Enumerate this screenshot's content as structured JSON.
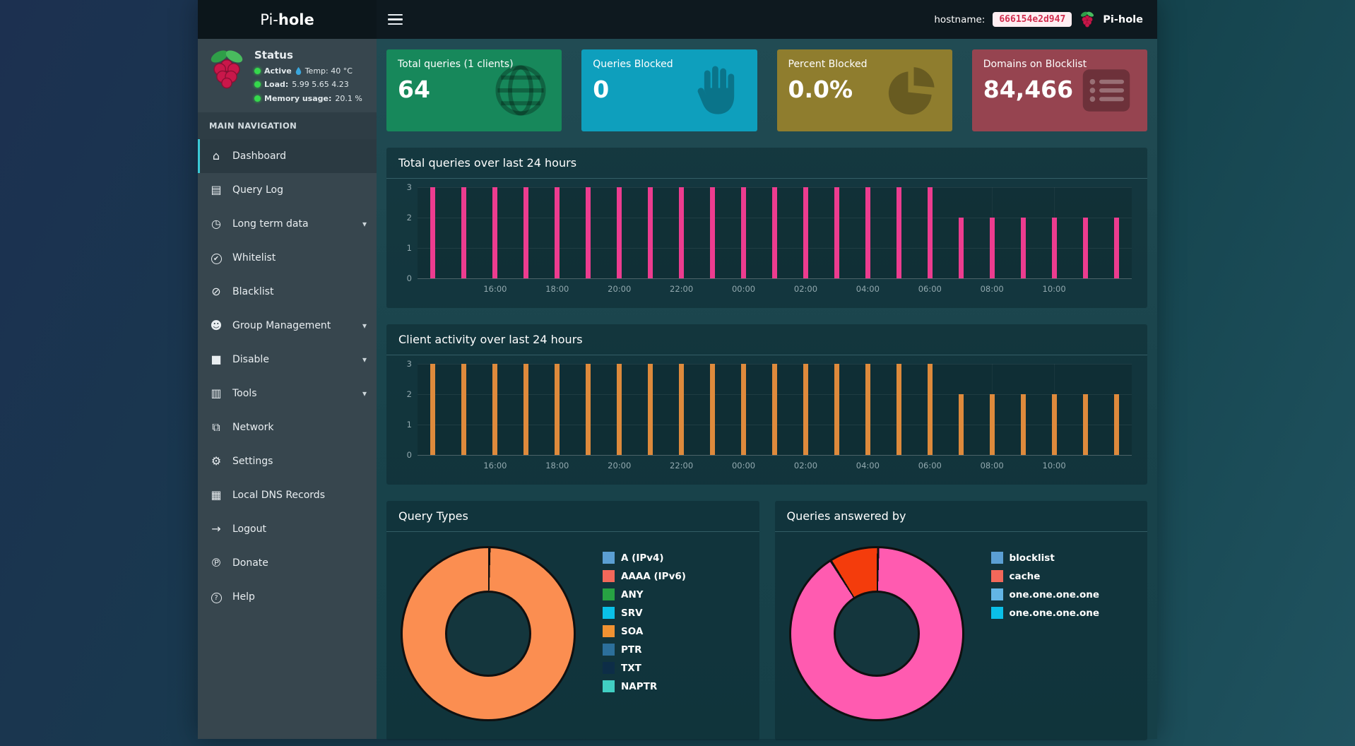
{
  "topbar": {
    "brand_pre": "Pi-",
    "brand_bold": "hole",
    "hostname_label": "hostname:",
    "hostname_value": "666154e2d947",
    "brand_right": "Pi-hole"
  },
  "sidebar": {
    "status": {
      "title": "Status",
      "rows": [
        {
          "label": "Active",
          "temp": "Temp: 40 °C"
        },
        {
          "label": "Load:",
          "value": "5.99  5.65  4.23"
        },
        {
          "label": "Memory usage:",
          "value": "20.1 %"
        }
      ]
    },
    "nav_header": "MAIN NAVIGATION",
    "items": [
      {
        "id": "dashboard",
        "label": "Dashboard",
        "icon": "home-icon",
        "glyph": "⌂",
        "active": true
      },
      {
        "id": "query-log",
        "label": "Query Log",
        "icon": "file-list-icon",
        "glyph": "▤"
      },
      {
        "id": "long-term-data",
        "label": "Long term data",
        "icon": "clock-icon",
        "glyph": "◷",
        "chevron": true
      },
      {
        "id": "whitelist",
        "label": "Whitelist",
        "icon": "check-circle-icon",
        "glyph": "✔",
        "circled": true
      },
      {
        "id": "blacklist",
        "label": "Blacklist",
        "icon": "ban-icon",
        "glyph": "⊘"
      },
      {
        "id": "group-management",
        "label": "Group Management",
        "icon": "users-icon",
        "glyph": "☻",
        "chevron": true
      },
      {
        "id": "disable",
        "label": "Disable",
        "icon": "stop-icon",
        "glyph": "■",
        "chevron": true
      },
      {
        "id": "tools",
        "label": "Tools",
        "icon": "folder-icon",
        "glyph": "▥",
        "chevron": true
      },
      {
        "id": "network",
        "label": "Network",
        "icon": "network-icon",
        "glyph": "⧉"
      },
      {
        "id": "settings",
        "label": "Settings",
        "icon": "gears-icon",
        "glyph": "⚙"
      },
      {
        "id": "local-dns-records",
        "label": "Local DNS Records",
        "icon": "address-book-icon",
        "glyph": "▦"
      },
      {
        "id": "logout",
        "label": "Logout",
        "icon": "logout-icon",
        "glyph": "→"
      },
      {
        "id": "donate",
        "label": "Donate",
        "icon": "paypal-icon",
        "glyph": "℗"
      },
      {
        "id": "help",
        "label": "Help",
        "icon": "question-circle-icon",
        "glyph": "?",
        "circled": true
      }
    ]
  },
  "cards": [
    {
      "title": "Total queries (1 clients)",
      "value": "64",
      "color": "#17885b",
      "icon": "globe"
    },
    {
      "title": "Queries Blocked",
      "value": "0",
      "color": "#0e9fbd",
      "icon": "hand"
    },
    {
      "title": "Percent Blocked",
      "value": "0.0%",
      "color": "#8f7d2e",
      "icon": "pie"
    },
    {
      "title": "Domains on Blocklist",
      "value": "84,466",
      "color": "#964450",
      "icon": "list"
    }
  ],
  "chart_data": [
    {
      "type": "bar",
      "title": "Total queries over last 24 hours",
      "bar_color": "#ed3c8f",
      "ylim": [
        0,
        3
      ],
      "yticks": [
        0,
        1,
        2,
        3
      ],
      "x": [
        "14:00",
        "15:00",
        "16:00",
        "17:00",
        "18:00",
        "19:00",
        "20:00",
        "21:00",
        "22:00",
        "23:00",
        "00:00",
        "01:00",
        "02:00",
        "03:00",
        "04:00",
        "05:00",
        "06:00",
        "07:00",
        "08:00",
        "09:00",
        "10:00",
        "11:00",
        "12:00"
      ],
      "xticks": [
        "16:00",
        "18:00",
        "20:00",
        "22:00",
        "00:00",
        "02:00",
        "04:00",
        "06:00",
        "08:00",
        "10:00"
      ],
      "values": [
        3,
        3,
        3,
        3,
        3,
        3,
        3,
        3,
        3,
        3,
        3,
        3,
        3,
        3,
        3,
        3,
        3,
        2,
        2,
        2,
        2,
        2,
        2
      ]
    },
    {
      "type": "bar",
      "title": "Client activity over last 24 hours",
      "bar_color": "#de8a3c",
      "ylim": [
        0,
        3
      ],
      "yticks": [
        0,
        1,
        2,
        3
      ],
      "x": [
        "14:00",
        "15:00",
        "16:00",
        "17:00",
        "18:00",
        "19:00",
        "20:00",
        "21:00",
        "22:00",
        "23:00",
        "00:00",
        "01:00",
        "02:00",
        "03:00",
        "04:00",
        "05:00",
        "06:00",
        "07:00",
        "08:00",
        "09:00",
        "10:00",
        "11:00",
        "12:00"
      ],
      "xticks": [
        "16:00",
        "18:00",
        "20:00",
        "22:00",
        "00:00",
        "02:00",
        "04:00",
        "06:00",
        "08:00",
        "10:00"
      ],
      "values": [
        3,
        3,
        3,
        3,
        3,
        3,
        3,
        3,
        3,
        3,
        3,
        3,
        3,
        3,
        3,
        3,
        3,
        2,
        2,
        2,
        2,
        2,
        2
      ]
    },
    {
      "type": "donut",
      "title": "Query Types",
      "start_angle": 0,
      "slices": [
        {
          "label": "SOA",
          "value": 100,
          "color": "#fb8e51"
        }
      ],
      "legend": [
        {
          "label": "A (IPv4)",
          "color": "#5b9fd3"
        },
        {
          "label": "AAAA (IPv6)",
          "color": "#f2685a"
        },
        {
          "label": "ANY",
          "color": "#27a243"
        },
        {
          "label": "SRV",
          "color": "#0ac0e8"
        },
        {
          "label": "SOA",
          "color": "#f09232"
        },
        {
          "label": "PTR",
          "color": "#2c6f9b"
        },
        {
          "label": "TXT",
          "color": "#0d2d47"
        },
        {
          "label": "NAPTR",
          "color": "#41cfc3"
        }
      ]
    },
    {
      "type": "donut",
      "title": "Queries answered by",
      "start_angle": -33,
      "slices": [
        {
          "label": "cache",
          "value": 9.2,
          "color": "#f43c0c"
        },
        {
          "label": "one.one.one.one",
          "value": 90.8,
          "color": "#ff5bb0"
        }
      ],
      "legend": [
        {
          "label": "blocklist",
          "color": "#5b9fd3"
        },
        {
          "label": "cache",
          "color": "#f2685a"
        },
        {
          "label": "one.one.one.one",
          "color": "#63b5e5"
        },
        {
          "label": "one.one.one.one",
          "color": "#0ac0e8"
        }
      ]
    }
  ]
}
